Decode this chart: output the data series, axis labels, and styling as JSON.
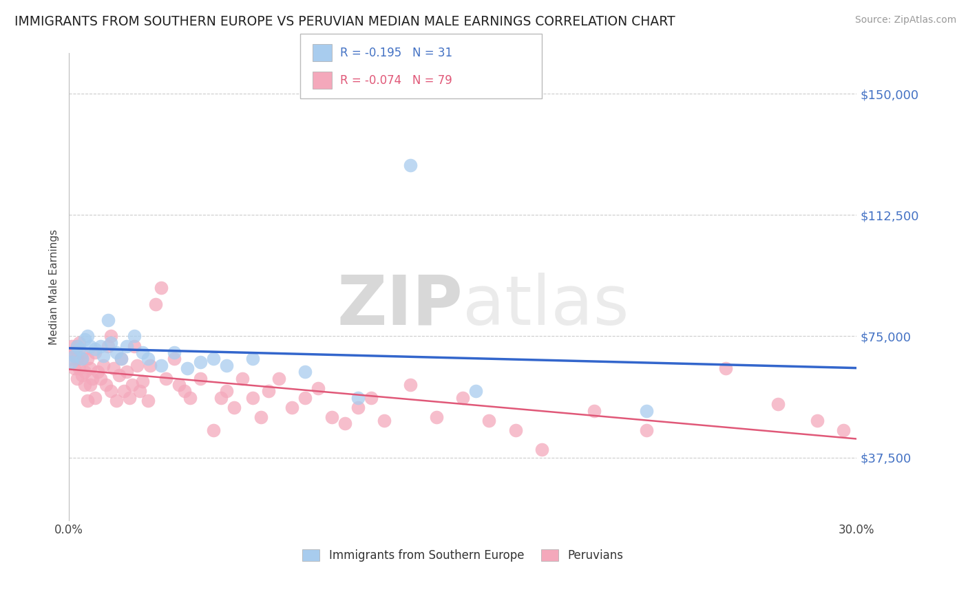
{
  "title": "IMMIGRANTS FROM SOUTHERN EUROPE VS PERUVIAN MEDIAN MALE EARNINGS CORRELATION CHART",
  "source": "Source: ZipAtlas.com",
  "ylabel": "Median Male Earnings",
  "xlim": [
    0.0,
    0.3
  ],
  "ylim": [
    18000,
    162500
  ],
  "yticks": [
    37500,
    75000,
    112500,
    150000
  ],
  "ytick_labels": [
    "$37,500",
    "$75,000",
    "$112,500",
    "$150,000"
  ],
  "xticks": [
    0.0,
    0.05,
    0.1,
    0.15,
    0.2,
    0.25,
    0.3
  ],
  "xtick_labels": [
    "0.0%",
    "",
    "",
    "",
    "",
    "",
    "30.0%"
  ],
  "watermark_zip": "ZIP",
  "watermark_atlas": "atlas",
  "legend_blue_label": "Immigrants from Southern Europe",
  "legend_pink_label": "Peruvians",
  "blue_R": -0.195,
  "blue_N": 31,
  "pink_R": -0.074,
  "pink_N": 79,
  "blue_color": "#A8CCEE",
  "pink_color": "#F4A8BB",
  "blue_line_color": "#3366CC",
  "pink_line_color": "#E05878",
  "axis_color": "#4472C4",
  "background_color": "#FFFFFF",
  "blue_scatter_x": [
    0.001,
    0.002,
    0.003,
    0.004,
    0.005,
    0.006,
    0.007,
    0.008,
    0.01,
    0.012,
    0.013,
    0.015,
    0.016,
    0.018,
    0.02,
    0.022,
    0.025,
    0.028,
    0.03,
    0.035,
    0.04,
    0.045,
    0.05,
    0.055,
    0.06,
    0.07,
    0.09,
    0.11,
    0.13,
    0.155,
    0.22
  ],
  "blue_scatter_y": [
    67000,
    69000,
    72000,
    71000,
    68000,
    74000,
    75000,
    72000,
    71000,
    72000,
    69000,
    80000,
    73000,
    70000,
    68000,
    72000,
    75000,
    70000,
    68000,
    66000,
    70000,
    65000,
    67000,
    68000,
    66000,
    68000,
    64000,
    56000,
    128000,
    58000,
    52000
  ],
  "pink_scatter_x": [
    0.001,
    0.001,
    0.002,
    0.002,
    0.003,
    0.003,
    0.003,
    0.004,
    0.004,
    0.005,
    0.005,
    0.005,
    0.006,
    0.006,
    0.007,
    0.007,
    0.008,
    0.008,
    0.009,
    0.01,
    0.01,
    0.011,
    0.012,
    0.013,
    0.014,
    0.015,
    0.016,
    0.016,
    0.017,
    0.018,
    0.019,
    0.02,
    0.021,
    0.022,
    0.023,
    0.024,
    0.025,
    0.026,
    0.027,
    0.028,
    0.03,
    0.031,
    0.033,
    0.035,
    0.037,
    0.04,
    0.042,
    0.044,
    0.046,
    0.05,
    0.055,
    0.058,
    0.06,
    0.063,
    0.066,
    0.07,
    0.073,
    0.076,
    0.08,
    0.085,
    0.09,
    0.095,
    0.1,
    0.105,
    0.11,
    0.115,
    0.12,
    0.13,
    0.14,
    0.15,
    0.16,
    0.17,
    0.18,
    0.2,
    0.22,
    0.25,
    0.27,
    0.285,
    0.295
  ],
  "pink_scatter_y": [
    72000,
    68000,
    70000,
    65000,
    72000,
    68000,
    62000,
    73000,
    65000,
    68000,
    63000,
    70000,
    64000,
    60000,
    68000,
    55000,
    65000,
    60000,
    62000,
    70000,
    56000,
    64000,
    62000,
    66000,
    60000,
    72000,
    75000,
    58000,
    65000,
    55000,
    63000,
    68000,
    58000,
    64000,
    56000,
    60000,
    72000,
    66000,
    58000,
    61000,
    55000,
    66000,
    85000,
    90000,
    62000,
    68000,
    60000,
    58000,
    56000,
    62000,
    46000,
    56000,
    58000,
    53000,
    62000,
    56000,
    50000,
    58000,
    62000,
    53000,
    56000,
    59000,
    50000,
    48000,
    53000,
    56000,
    49000,
    60000,
    50000,
    56000,
    49000,
    46000,
    40000,
    52000,
    46000,
    65000,
    54000,
    49000,
    46000
  ]
}
